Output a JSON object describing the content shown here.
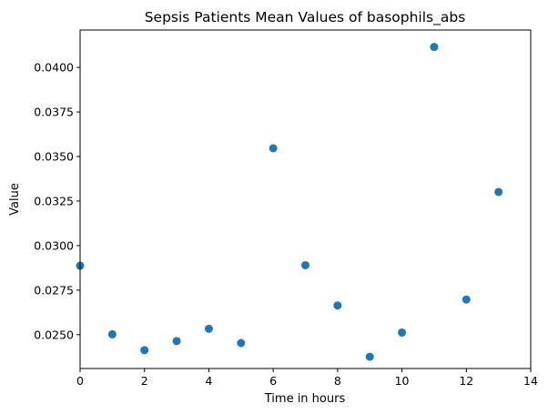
{
  "chart_data": {
    "type": "scatter",
    "title": "Sepsis Patients Mean Values of basophils_abs",
    "xlabel": "Time in hours",
    "ylabel": "Value",
    "xlim": [
      0,
      14
    ],
    "ylim": [
      0.0231,
      0.0421
    ],
    "x_ticks": [
      0,
      2,
      4,
      6,
      8,
      10,
      12,
      14
    ],
    "x_tick_labels": [
      "0",
      "2",
      "4",
      "6",
      "8",
      "10",
      "12",
      "14"
    ],
    "y_ticks": [
      0.025,
      0.0275,
      0.03,
      0.0325,
      0.035,
      0.0375,
      0.04
    ],
    "y_tick_labels": [
      "0.0250",
      "0.0275",
      "0.0300",
      "0.0325",
      "0.0350",
      "0.0375",
      "0.0400"
    ],
    "grid": false,
    "series": [
      {
        "color": "#1f77b4",
        "points": [
          {
            "x": 0,
            "y": 0.02887
          },
          {
            "x": 1,
            "y": 0.02502
          },
          {
            "x": 2,
            "y": 0.02413
          },
          {
            "x": 3,
            "y": 0.02464
          },
          {
            "x": 4,
            "y": 0.02533
          },
          {
            "x": 5,
            "y": 0.02453
          },
          {
            "x": 6,
            "y": 0.03546
          },
          {
            "x": 7,
            "y": 0.0289
          },
          {
            "x": 8,
            "y": 0.02664
          },
          {
            "x": 9,
            "y": 0.02376
          },
          {
            "x": 10,
            "y": 0.02512
          },
          {
            "x": 11,
            "y": 0.04115
          },
          {
            "x": 12,
            "y": 0.02697
          },
          {
            "x": 13,
            "y": 0.03301
          }
        ]
      }
    ]
  }
}
